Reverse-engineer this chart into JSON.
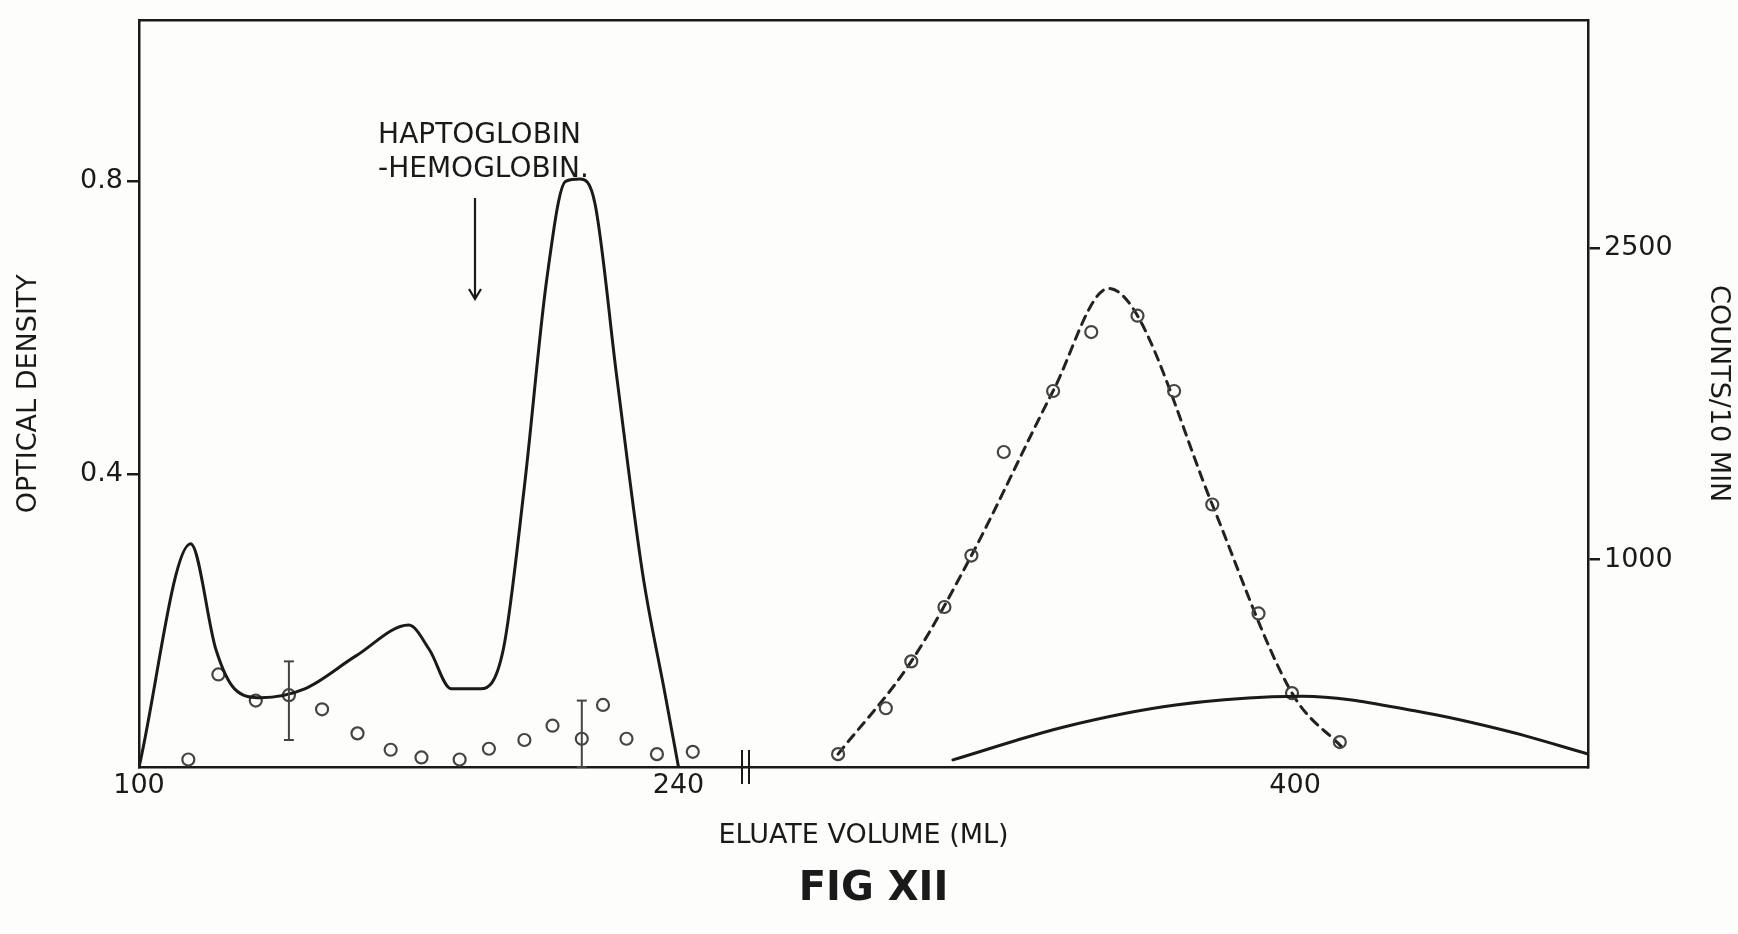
{
  "chart_data": {
    "type": "line",
    "title": "FIG XII",
    "xlabel": "ELUATE VOLUME (ML)",
    "ylabel": "OPTICAL DENSITY",
    "y2label": "COUNTS/10 MIN",
    "xlim": [
      100,
      476
    ],
    "xticks": [
      100,
      240,
      400
    ],
    "ylim": [
      0,
      1.02
    ],
    "yticks": [
      0.4,
      0.8
    ],
    "y2lim": [
      0,
      3600
    ],
    "y2ticks": [
      1000,
      2500
    ],
    "legend": false,
    "grid": false,
    "annotations": [
      "HAPTOGLOBIN -HEMOGLOBIN."
    ],
    "series": [
      {
        "type": "line",
        "color": "#1a1a1a",
        "line_style": "solid",
        "marker": "none",
        "x": [
          100,
          113.4,
          120,
          124.8,
          131.5,
          143,
          156.3,
          170,
          175.4,
          181,
          188.7,
          194.5,
          200,
          205.8,
          210.7,
          214.5,
          218.3,
          224,
          230.7,
          236.5,
          240,
          275,
          311.2,
          340,
          369,
          402,
          431,
          456,
          476
        ],
        "values": [
          0,
          0.305,
          0.16,
          0.107,
          0.095,
          0.107,
          0.152,
          0.194,
          0.16,
          0.107,
          0.107,
          0.16,
          0.383,
          0.666,
          0.8,
          0.803,
          0.77,
          0.532,
          0.264,
          0.1,
          0,
          null,
          0.01,
          0.055,
          0.085,
          0.097,
          0.077,
          0.048,
          0.018
        ]
      },
      {
        "type": "scatter",
        "axis": "y2",
        "color": "#444444",
        "marker": "circle",
        "x": [
          112.8,
          120.6,
          130.3,
          138.9,
          147.5,
          156.7,
          165.3,
          173.3,
          183.2,
          190.8,
          200,
          207.3,
          214.9,
          220.4,
          226.5,
          234.4,
          243.7,
          281.4,
          293.8,
          300.4,
          309,
          316,
          324.4,
          337.2,
          347.1,
          359.1,
          368.6,
          378.5,
          390.5,
          399.2,
          411.6
        ],
        "values": [
          37,
          447,
          321,
          347,
          279,
          163,
          84,
          47,
          37,
          89,
          131,
          200,
          137,
          300,
          137,
          63,
          74,
          63,
          284,
          510,
          772,
          1020,
          1519,
          1813,
          2097,
          2176,
          1813,
          1266,
          741,
          357,
          121
        ],
        "errors": [
          null,
          null,
          null,
          [
            131,
            510
          ],
          null,
          null,
          null,
          null,
          null,
          null,
          null,
          null,
          [
            0,
            321
          ],
          null,
          null,
          null,
          null,
          null,
          null,
          null,
          null,
          null,
          null,
          null,
          null,
          null,
          null,
          null,
          null,
          null,
          null
        ]
      },
      {
        "type": "line",
        "axis": "y2",
        "color": "#222222",
        "line_style": "dashed",
        "marker": "none",
        "x": [
          281.4,
          300.4,
          316,
          337.2,
          351.6,
          359.1,
          378.5,
          399.2,
          412.5
        ],
        "values": [
          63,
          510,
          1020,
          1813,
          2307,
          2176,
          1266,
          357,
          90
        ]
      }
    ]
  }
}
